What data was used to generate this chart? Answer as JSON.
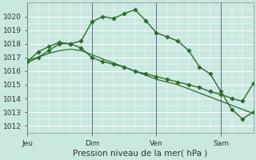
{
  "background_color": "#c8e8e0",
  "grid_color": "#ffffff",
  "line_color": "#2d6b2d",
  "xlabel": "Pression niveau de la mer( hPa )",
  "ylim": [
    1011.5,
    1020.8
  ],
  "yticks": [
    1012,
    1013,
    1014,
    1015,
    1016,
    1017,
    1018,
    1019,
    1020
  ],
  "xlim": [
    0,
    21
  ],
  "xtick_positions": [
    0,
    6,
    12,
    18
  ],
  "xtick_labels": [
    "Jeu",
    "Dim",
    "Ven",
    "Sam"
  ],
  "series1_x": [
    0,
    1,
    2,
    3,
    4,
    5,
    6,
    7,
    8,
    9,
    10,
    11,
    12,
    13,
    14,
    15,
    16,
    17,
    18,
    19,
    20,
    21
  ],
  "series1_y": [
    1016.8,
    1017.0,
    1017.5,
    1018.0,
    1018.0,
    1018.2,
    1019.6,
    1020.0,
    1019.85,
    1020.2,
    1020.5,
    1019.7,
    1018.8,
    1018.5,
    1018.2,
    1017.5,
    1016.3,
    1015.8,
    1014.5,
    1013.2,
    1012.5,
    1013.0
  ],
  "series2_x": [
    0,
    1,
    2,
    3,
    4,
    5,
    6,
    7,
    8,
    9,
    10,
    11,
    12,
    13,
    14,
    15,
    16,
    17,
    18,
    19,
    20,
    21
  ],
  "series2_y": [
    1016.6,
    1017.0,
    1017.3,
    1017.5,
    1017.6,
    1017.5,
    1017.2,
    1016.9,
    1016.6,
    1016.3,
    1016.0,
    1015.7,
    1015.4,
    1015.2,
    1015.0,
    1014.7,
    1014.4,
    1014.1,
    1013.8,
    1013.5,
    1013.2,
    1012.9
  ],
  "series3_x": [
    0,
    1,
    2,
    3,
    4,
    5,
    6,
    7,
    8,
    9,
    10,
    11,
    12,
    13,
    14,
    15,
    16,
    17,
    18,
    19,
    20,
    21
  ],
  "series3_y": [
    1016.7,
    1017.4,
    1017.8,
    1018.1,
    1018.0,
    1017.7,
    1017.0,
    1016.7,
    1016.5,
    1016.3,
    1016.0,
    1015.8,
    1015.6,
    1015.4,
    1015.2,
    1015.0,
    1014.8,
    1014.5,
    1014.3,
    1014.0,
    1013.8,
    1015.1
  ],
  "vline_positions": [
    0,
    6,
    12,
    18
  ],
  "vline_color": "#666688",
  "figsize": [
    3.2,
    2.0
  ],
  "dpi": 100
}
